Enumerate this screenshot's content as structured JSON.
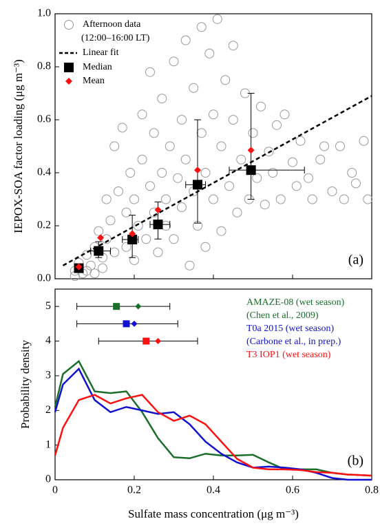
{
  "chart_data": [
    {
      "type": "scatter",
      "panel_label": "(a)",
      "y_label": "IEPOX-SOA factor loading (μg m⁻³)",
      "xlim": [
        0,
        0.8
      ],
      "xticks": [
        0,
        0.2,
        0.4,
        0.6,
        0.8
      ],
      "ylim": [
        0,
        1.0
      ],
      "yticks": [
        {
          "value": 0,
          "label": "0.0"
        },
        0.2,
        0.4,
        0.6,
        0.8,
        {
          "value": 1.0,
          "label": "1.0"
        }
      ],
      "points": {
        "name": "Afternoon data",
        "note": "(12:00–16:00 LT)",
        "color": "#999999",
        "x": [
          0.05,
          0.06,
          0.07,
          0.08,
          0.09,
          0.1,
          0.11,
          0.12,
          0.13,
          0.13,
          0.14,
          0.15,
          0.15,
          0.16,
          0.17,
          0.18,
          0.18,
          0.19,
          0.2,
          0.2,
          0.21,
          0.22,
          0.22,
          0.23,
          0.24,
          0.24,
          0.25,
          0.25,
          0.26,
          0.27,
          0.27,
          0.28,
          0.28,
          0.29,
          0.3,
          0.3,
          0.31,
          0.32,
          0.32,
          0.33,
          0.33,
          0.34,
          0.35,
          0.35,
          0.36,
          0.37,
          0.37,
          0.38,
          0.38,
          0.39,
          0.4,
          0.4,
          0.41,
          0.42,
          0.42,
          0.43,
          0.44,
          0.45,
          0.45,
          0.46,
          0.47,
          0.48,
          0.49,
          0.5,
          0.51,
          0.52,
          0.53,
          0.54,
          0.55,
          0.56,
          0.57,
          0.58,
          0.6,
          0.61,
          0.62,
          0.64,
          0.65,
          0.67,
          0.68,
          0.7,
          0.72,
          0.73,
          0.75,
          0.76,
          0.78,
          0.79,
          0.05,
          0.08,
          0.1,
          0.12
        ],
        "y": [
          0.03,
          0.06,
          0.02,
          0.09,
          0.05,
          0.12,
          0.18,
          0.08,
          0.15,
          0.3,
          0.22,
          0.5,
          0.1,
          0.33,
          0.57,
          0.25,
          0.12,
          0.4,
          0.07,
          0.3,
          0.2,
          0.45,
          0.62,
          0.15,
          0.35,
          0.78,
          0.55,
          0.25,
          0.1,
          0.4,
          0.68,
          0.3,
          0.2,
          0.5,
          0.82,
          0.15,
          0.38,
          0.6,
          0.27,
          0.9,
          0.45,
          0.05,
          0.72,
          0.33,
          0.2,
          0.95,
          0.55,
          0.4,
          0.12,
          0.85,
          0.3,
          0.62,
          0.98,
          0.5,
          0.18,
          0.75,
          0.35,
          0.6,
          0.88,
          0.25,
          0.45,
          0.7,
          0.3,
          0.55,
          0.38,
          0.65,
          0.28,
          0.48,
          0.4,
          0.58,
          0.3,
          0.62,
          0.44,
          0.35,
          0.52,
          0.38,
          0.3,
          0.45,
          0.5,
          0.33,
          0.5,
          0.3,
          0.4,
          0.36,
          0.52,
          0.3,
          0.01,
          0.03,
          0.02,
          0.04
        ]
      },
      "fit": {
        "name": "Linear fit",
        "x": [
          0.02,
          0.8
        ],
        "y": [
          0.05,
          0.69
        ]
      },
      "median": {
        "name": "Median",
        "x": [
          0.06,
          0.11,
          0.195,
          0.26,
          0.36,
          0.495
        ],
        "y": [
          0.04,
          0.105,
          0.148,
          0.205,
          0.355,
          0.41
        ],
        "x_low": [
          0.05,
          0.09,
          0.17,
          0.24,
          0.33,
          0.44
        ],
        "x_high": [
          0.07,
          0.14,
          0.21,
          0.29,
          0.38,
          0.63
        ],
        "y_low": [
          0.03,
          0.08,
          0.08,
          0.15,
          0.21,
          0.3
        ],
        "y_high": [
          0.05,
          0.14,
          0.24,
          0.29,
          0.6,
          0.7
        ]
      },
      "mean": {
        "name": "Mean",
        "color": "#ff1010",
        "x": [
          0.06,
          0.115,
          0.195,
          0.26,
          0.36,
          0.495
        ],
        "y": [
          0.045,
          0.155,
          0.17,
          0.26,
          0.41,
          0.485
        ]
      }
    },
    {
      "type": "line",
      "panel_label": "(b)",
      "x_label": "Sulfate mass concentration (μg m⁻³)",
      "y_label": "Probability density",
      "xlim": [
        0,
        0.8
      ],
      "xticks": [
        0,
        0.2,
        0.4,
        0.6,
        0.8
      ],
      "ylim": [
        0,
        5.5
      ],
      "yticks": [
        0,
        1,
        2,
        3,
        4,
        5
      ],
      "x": [
        0,
        0.02,
        0.06,
        0.1,
        0.14,
        0.18,
        0.22,
        0.26,
        0.3,
        0.34,
        0.38,
        0.42,
        0.46,
        0.5,
        0.54,
        0.58,
        0.62,
        0.66,
        0.7,
        0.74,
        0.8
      ],
      "series": [
        {
          "name": "AMAZE-08 (wet season)",
          "note": "(Chen et al., 2009)",
          "color": "#1a6e2a",
          "values": [
            2.1,
            3.05,
            3.42,
            2.55,
            2.5,
            2.55,
            1.95,
            1.2,
            0.65,
            0.62,
            0.75,
            0.7,
            0.7,
            0.72,
            0.5,
            0.3,
            0.3,
            0.3,
            0.2,
            0.15,
            0.12
          ],
          "summary": {
            "y": 5,
            "median": 0.155,
            "mean": 0.21,
            "low": 0.055,
            "high": 0.29
          }
        },
        {
          "name": "T0a 2015 (wet season)",
          "note": "(Carbone et al., in prep.)",
          "color": "#1010d0",
          "values": [
            1.95,
            2.75,
            3.2,
            2.3,
            1.95,
            2.1,
            2.0,
            1.9,
            1.95,
            1.6,
            1.1,
            0.75,
            0.5,
            0.35,
            0.38,
            0.35,
            0.3,
            0.2,
            0.05,
            0.0,
            0.0
          ],
          "summary": {
            "y": 4.5,
            "median": 0.18,
            "mean": 0.2,
            "low": 0.055,
            "high": 0.31
          }
        },
        {
          "name": "T3 IOP1 (wet season)",
          "color": "#ff1010",
          "values": [
            0.7,
            1.5,
            2.3,
            2.45,
            2.2,
            2.35,
            2.45,
            1.95,
            1.7,
            1.85,
            1.6,
            1.1,
            0.6,
            0.35,
            0.3,
            0.3,
            0.28,
            0.22,
            0.2,
            0.15,
            0.12
          ],
          "summary": {
            "y": 4,
            "median": 0.23,
            "mean": 0.26,
            "low": 0.11,
            "high": 0.36
          }
        }
      ]
    }
  ]
}
